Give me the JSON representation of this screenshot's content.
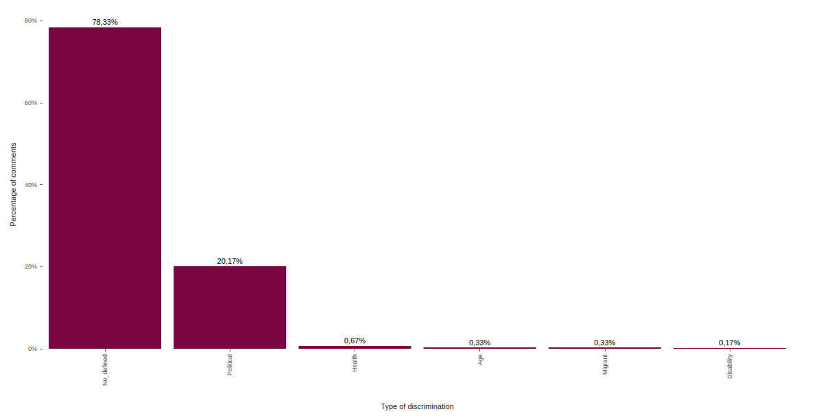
{
  "chart_data": {
    "type": "bar",
    "xlabel": "Type of discrimination",
    "ylabel": "Percentage of comments",
    "categories": [
      "No_defined",
      "Political",
      "Health",
      "Age",
      "Migrant",
      "Disability"
    ],
    "values": [
      78.33,
      20.17,
      0.67,
      0.33,
      0.33,
      0.17
    ],
    "value_labels": [
      "78,33%",
      "20,17%",
      "0,67%",
      "0,33%",
      "0,33%",
      "0,17%"
    ],
    "color": "#7b0540",
    "ylim": [
      0,
      80
    ],
    "yticks": [
      {
        "value": 0,
        "label": "0%"
      },
      {
        "value": 20,
        "label": "20%"
      },
      {
        "value": 40,
        "label": "40%"
      },
      {
        "value": 60,
        "label": "60%"
      },
      {
        "value": 80,
        "label": "80%"
      }
    ],
    "grid": false,
    "data_labels": true
  }
}
